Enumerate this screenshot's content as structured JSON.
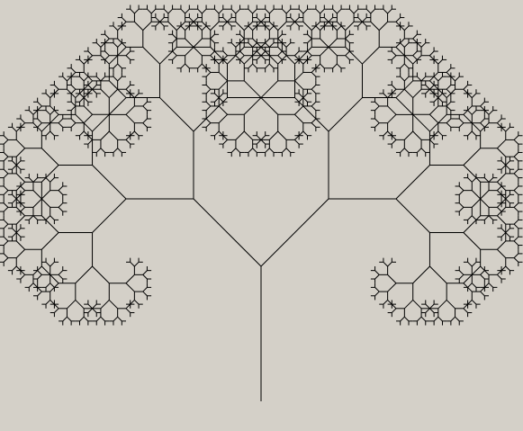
{
  "window": {
    "background": "#d4d0c8"
  },
  "tree": {
    "line_color": "#000000",
    "depth": 10,
    "branch_angle_deg": 45,
    "length_ratio": 0.707
  }
}
